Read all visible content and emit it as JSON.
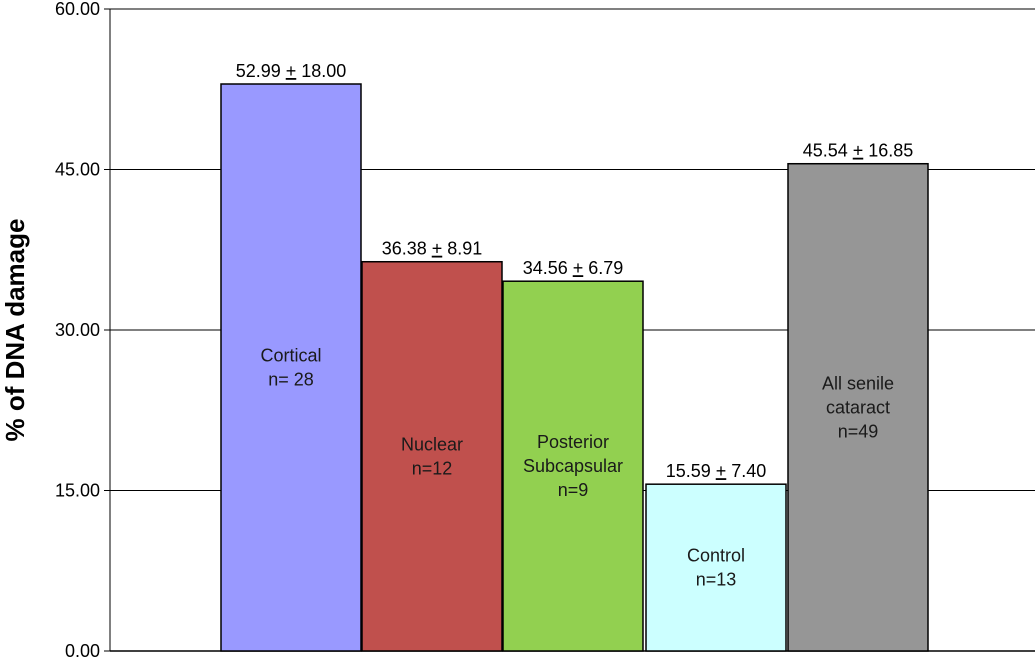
{
  "chart_data": {
    "type": "bar",
    "ylabel": "% of DNA damage",
    "ylim": [
      0,
      60
    ],
    "yticks": [
      "0.00",
      "15.00",
      "30.00",
      "45.00",
      "60.00"
    ],
    "ytick_values": [
      0,
      15,
      30,
      45,
      60
    ],
    "grid": true,
    "bars": [
      {
        "label_lines": [
          "Cortical",
          "n= 28"
        ],
        "value": 52.99,
        "sd": 18.0,
        "mean_text": "52.99",
        "pm": "+",
        "sd_text": "18.00",
        "color": "#9999ff"
      },
      {
        "label_lines": [
          "Nuclear",
          "n=12"
        ],
        "value": 36.38,
        "sd": 8.91,
        "mean_text": "36.38",
        "pm": "+",
        "sd_text": "8.91",
        "color": "#c0504d"
      },
      {
        "label_lines": [
          "Posterior",
          "Subcapsular",
          "n=9"
        ],
        "value": 34.56,
        "sd": 6.79,
        "mean_text": "34.56",
        "pm": "+",
        "sd_text": "6.79",
        "color": "#92d050"
      },
      {
        "label_lines": [
          "Control",
          "n=13"
        ],
        "value": 15.59,
        "sd": 7.4,
        "mean_text": "15.59",
        "pm": "+",
        "sd_text": "7.40",
        "color": "#ccffff"
      },
      {
        "label_lines": [
          "All senile",
          "cataract",
          "n=49"
        ],
        "value": 45.54,
        "sd": 16.85,
        "mean_text": "45.54",
        "pm": "+",
        "sd_text": "16.85",
        "color": "#969696"
      }
    ]
  }
}
